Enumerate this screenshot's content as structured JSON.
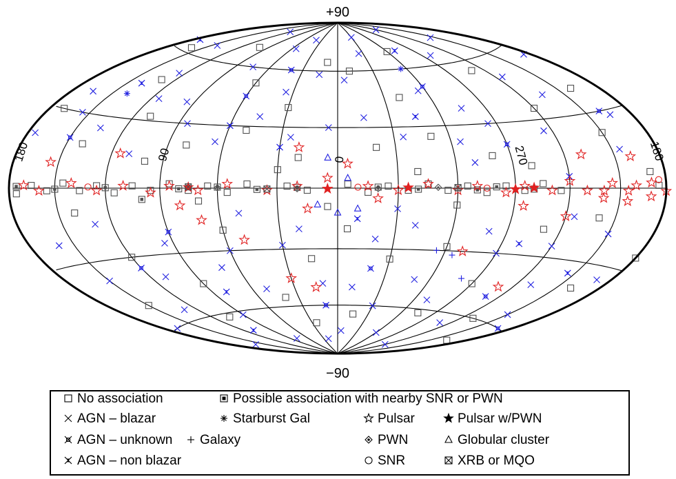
{
  "chart_data": {
    "type": "scatter",
    "projection": "hammer-aitoff",
    "coordinate_system": "galactic",
    "grid": true,
    "legend_placement": "bottom",
    "axis_labels": {
      "top": "+90",
      "bottom": "−90",
      "left": "180",
      "right": "180",
      "center_lon": "0",
      "lon_90": "90",
      "lon_270": "270"
    },
    "meridians_deg": [
      0,
      30,
      60,
      90,
      120,
      150,
      180,
      210,
      240,
      270,
      300,
      330
    ],
    "parallels_deg": [
      -60,
      -30,
      0,
      30,
      60
    ],
    "legend": {
      "no_association": "No association",
      "possible_snr_pwn": "Possible association with nearby SNR or PWN",
      "agn_blazar": "AGN – blazar",
      "starburst": "Starburst Gal",
      "pulsar": "Pulsar",
      "pulsar_pwn": "Pulsar w/PWN",
      "agn_unknown": "AGN – unknown",
      "galaxy": "Galaxy",
      "pwn": "PWN",
      "globular": "Globular cluster",
      "agn_non_blazar": "AGN – non blazar",
      "snr": "SNR",
      "xrb": "XRB or MQO"
    },
    "colors": {
      "agn": "#2020e0",
      "pulsar": "#e02020",
      "unassociated": "#505050",
      "grid": "#000000"
    },
    "series": [
      {
        "name": "No association",
        "marker": "square",
        "points": [
          [
            350,
            60
          ],
          [
            320,
            45
          ],
          [
            300,
            70
          ],
          [
            250,
            55
          ],
          [
            200,
            40
          ],
          [
            160,
            62
          ],
          [
            130,
            48
          ],
          [
            100,
            70
          ],
          [
            60,
            52
          ],
          [
            30,
            40
          ],
          [
            10,
            65
          ],
          [
            340,
            20
          ],
          [
            310,
            25
          ],
          [
            280,
            15
          ],
          [
            240,
            35
          ],
          [
            210,
            22
          ],
          [
            170,
            30
          ],
          [
            140,
            18
          ],
          [
            110,
            32
          ],
          [
            80,
            20
          ],
          [
            50,
            28
          ],
          [
            20,
            15
          ],
          [
            355,
            -20
          ],
          [
            330,
            -35
          ],
          [
            300,
            -28
          ],
          [
            270,
            -45
          ],
          [
            250,
            -18
          ],
          [
            230,
            -60
          ],
          [
            200,
            -40
          ],
          [
            180,
            -25
          ],
          [
            150,
            -50
          ],
          [
            120,
            -30
          ],
          [
            90,
            -45
          ],
          [
            60,
            -20
          ],
          [
            40,
            -55
          ],
          [
            15,
            -35
          ],
          [
            345,
            -65
          ],
          [
            285,
            -62
          ],
          [
            195,
            -70
          ],
          [
            105,
            -62
          ],
          [
            25,
            -70
          ],
          [
            320,
            8
          ],
          [
            300,
            -8
          ],
          [
            260,
            10
          ],
          [
            220,
            -12
          ],
          [
            190,
            6
          ],
          [
            140,
            -10
          ],
          [
            100,
            12
          ],
          [
            70,
            -6
          ],
          [
            30,
            9
          ],
          [
            5,
            -9
          ],
          [
            355,
            2
          ],
          [
            345,
            -2
          ],
          [
            335,
            1
          ],
          [
            325,
            -1
          ],
          [
            315,
            2
          ],
          [
            305,
            -1
          ],
          [
            295,
            1
          ],
          [
            285,
            -2
          ],
          [
            275,
            1
          ],
          [
            265,
            -1
          ],
          [
            255,
            2
          ],
          [
            245,
            -1
          ],
          [
            25,
            1
          ],
          [
            15,
            -1
          ],
          [
            45,
            2
          ],
          [
            55,
            -2
          ],
          [
            65,
            1
          ],
          [
            75,
            -1
          ],
          [
            85,
            2
          ],
          [
            95,
            -1
          ],
          [
            105,
            1
          ],
          [
            115,
            -2
          ],
          [
            125,
            1
          ],
          [
            135,
            -1
          ],
          [
            145,
            2
          ],
          [
            155,
            -1
          ],
          [
            165,
            1
          ],
          [
            175,
            -2
          ],
          [
            185,
            1
          ]
        ]
      },
      {
        "name": "Possible association with nearby SNR or PWN",
        "marker": "square-dot",
        "points": [
          [
            340,
            0.5
          ],
          [
            320,
            -0.5
          ],
          [
            300,
            0.3
          ],
          [
            290,
            -0.8
          ],
          [
            280,
            0.6
          ],
          [
            260,
            -0.4
          ],
          [
            20,
            0.4
          ],
          [
            40,
            -0.6
          ],
          [
            60,
            0.5
          ],
          [
            80,
            -0.3
          ],
          [
            100,
            -5
          ],
          [
            120,
            0.2
          ],
          [
            150,
            -0.4
          ],
          [
            175,
            0.6
          ]
        ]
      },
      {
        "name": "AGN – blazar",
        "marker": "x",
        "points": [
          [
            355,
            55
          ],
          [
            335,
            70
          ],
          [
            305,
            48
          ],
          [
            285,
            38
          ],
          [
            262,
            65
          ],
          [
            235,
            50
          ],
          [
            215,
            72
          ],
          [
            185,
            55
          ],
          [
            165,
            38
          ],
          [
            145,
            66
          ],
          [
            125,
            52
          ],
          [
            95,
            40
          ],
          [
            75,
            60
          ],
          [
            55,
            72
          ],
          [
            35,
            48
          ],
          [
            15,
            58
          ],
          [
            345,
            35
          ],
          [
            325,
            25
          ],
          [
            295,
            22
          ],
          [
            275,
            30
          ],
          [
            245,
            25
          ],
          [
            225,
            40
          ],
          [
            195,
            28
          ],
          [
            175,
            20
          ],
          [
            155,
            30
          ],
          [
            135,
            25
          ],
          [
            115,
            40
          ],
          [
            85,
            30
          ],
          [
            65,
            22
          ],
          [
            45,
            35
          ],
          [
            25,
            25
          ],
          [
            5,
            30
          ],
          [
            350,
            -50
          ],
          [
            330,
            -60
          ],
          [
            310,
            -45
          ],
          [
            290,
            -55
          ],
          [
            270,
            -30
          ],
          [
            250,
            -65
          ],
          [
            230,
            -42
          ],
          [
            210,
            -55
          ],
          [
            190,
            -35
          ],
          [
            170,
            -60
          ],
          [
            150,
            -38
          ],
          [
            130,
            -55
          ],
          [
            110,
            -40
          ],
          [
            90,
            -62
          ],
          [
            70,
            -38
          ],
          [
            50,
            -50
          ],
          [
            30,
            -28
          ],
          [
            10,
            -48
          ],
          [
            340,
            -25
          ],
          [
            320,
            -18
          ],
          [
            280,
            -20
          ],
          [
            240,
            -25
          ],
          [
            210,
            -18
          ],
          [
            160,
            -22
          ],
          [
            130,
            -15
          ],
          [
            95,
            -25
          ],
          [
            60,
            -30
          ],
          [
            20,
            -20
          ],
          [
            355,
            -75
          ],
          [
            300,
            -75
          ],
          [
            240,
            -80
          ],
          [
            160,
            -75
          ],
          [
            80,
            -78
          ],
          [
            20,
            -80
          ],
          [
            330,
            80
          ],
          [
            240,
            82
          ],
          [
            120,
            80
          ],
          [
            40,
            78
          ],
          [
            205,
            15
          ],
          [
            235,
            -12
          ],
          [
            110,
            15
          ],
          [
            290,
            12
          ],
          [
            50,
            -12
          ],
          [
            330,
            -10
          ]
        ]
      },
      {
        "name": "AGN – unknown",
        "marker": "x-box",
        "points": [
          [
            300,
            50
          ],
          [
            200,
            30
          ],
          [
            120,
            -35
          ],
          [
            60,
            45
          ],
          [
            340,
            -40
          ],
          [
            250,
            -50
          ],
          [
            150,
            20
          ],
          [
            10,
            -60
          ],
          [
            270,
            20
          ],
          [
            90,
            -20
          ],
          [
            190,
            -60
          ],
          [
            40,
            60
          ]
        ]
      },
      {
        "name": "AGN – non blazar",
        "marker": "bowtie",
        "points": [
          [
            315,
            35
          ],
          [
            260,
            -25
          ],
          [
            140,
            45
          ],
          [
            80,
            -50
          ],
          [
            30,
            20
          ],
          [
            215,
            -35
          ],
          [
            350,
            -15
          ],
          [
            175,
            65
          ],
          [
            110,
            -70
          ],
          [
            290,
            70
          ],
          [
            60,
            30
          ],
          [
            240,
            5
          ]
        ]
      },
      {
        "name": "Pulsar",
        "marker": "star",
        "points": [
          [
            345,
            1
          ],
          [
            330,
            -1
          ],
          [
            315,
            2
          ],
          [
            300,
            -1
          ],
          [
            290,
            1
          ],
          [
            275,
            -2
          ],
          [
            265,
            1
          ],
          [
            250,
            -1
          ],
          [
            20,
            1
          ],
          [
            35,
            -1
          ],
          [
            55,
            2
          ],
          [
            70,
            -1
          ],
          [
            85,
            1
          ],
          [
            95,
            -2
          ],
          [
            110,
            1
          ],
          [
            125,
            -1
          ],
          [
            140,
            2
          ],
          [
            160,
            -1
          ],
          [
            170,
            1
          ],
          [
            180,
            -1
          ],
          [
            190,
            2
          ],
          [
            200,
            1
          ],
          [
            205,
            -1
          ],
          [
            215,
            2
          ],
          [
            220,
            -1
          ],
          [
            230,
            -1
          ],
          [
            240,
            3
          ],
          [
            155,
            10
          ],
          [
            115,
            15
          ],
          [
            80,
            -8
          ],
          [
            70,
            -15
          ],
          [
            50,
            -25
          ],
          [
            30,
            -45
          ],
          [
            15,
            -50
          ],
          [
            355,
            12
          ],
          [
            20,
            20
          ],
          [
            205,
            -5
          ],
          [
            200,
            12
          ],
          [
            190,
            -3
          ],
          [
            250,
            -45
          ],
          [
            265,
            -8
          ],
          [
            240,
            -12
          ],
          [
            220,
            -4
          ],
          [
            230,
            14
          ],
          [
            340,
            -5
          ],
          [
            5,
            5
          ],
          [
            15,
            -10
          ],
          [
            290,
            -30
          ]
        ]
      },
      {
        "name": "Pulsar w/PWN",
        "marker": "star-filled",
        "points": [
          [
            325,
            0.3
          ],
          [
            270,
            -0.5
          ],
          [
            5,
            -0.3
          ],
          [
            75,
            0.4
          ],
          [
            260,
            0.2
          ]
        ]
      },
      {
        "name": "PWN",
        "marker": "diamond-dot",
        "points": [
          [
            340,
            -0.2
          ],
          [
            310,
            0.4
          ],
          [
            20,
            -0.3
          ],
          [
            60,
            0.2
          ]
        ]
      },
      {
        "name": "Globular cluster",
        "marker": "triangle",
        "points": [
          [
            10,
            -8
          ],
          [
            0,
            -12
          ],
          [
            355,
            5
          ],
          [
            350,
            -10
          ],
          [
            5,
            15
          ]
        ]
      },
      {
        "name": "SNR",
        "marker": "circle",
        "points": [
          [
            185,
            3
          ],
          [
            130,
            0.5
          ],
          [
            350,
            0.5
          ],
          [
            285,
            0
          ]
        ]
      },
      {
        "name": "XRB or MQO",
        "marker": "square-x",
        "points": [
          [
            300,
            0.2
          ],
          [
            35,
            -0.4
          ],
          [
            75,
            0.6
          ]
        ]
      },
      {
        "name": "Galaxy",
        "marker": "plus",
        "points": [
          [
            305,
            -30
          ],
          [
            295,
            -32
          ],
          [
            280,
            -43
          ]
        ]
      },
      {
        "name": "Starburst Gal",
        "marker": "asterisk",
        "points": [
          [
            140,
            40
          ],
          [
            305,
            60
          ]
        ]
      }
    ]
  }
}
